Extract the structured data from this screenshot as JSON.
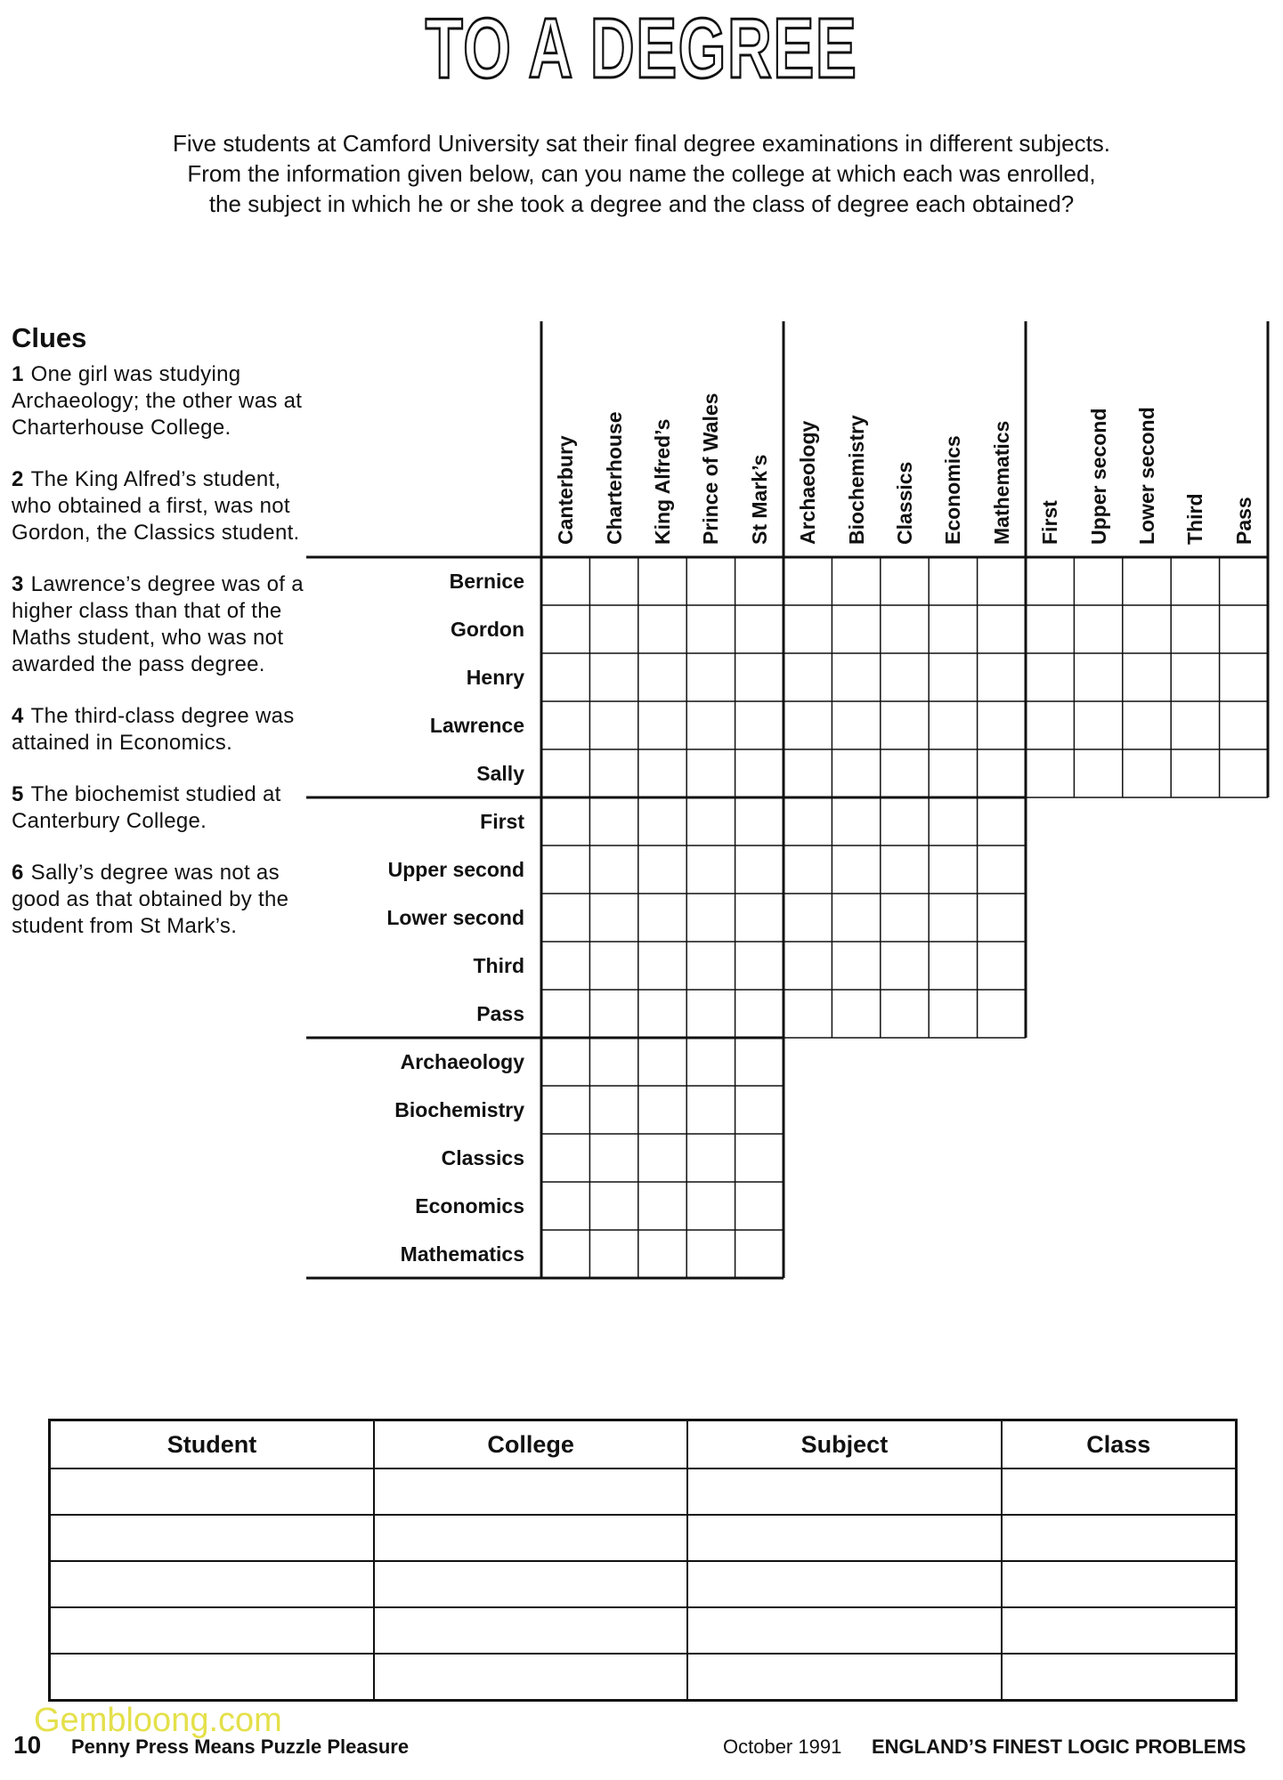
{
  "title": "TO A DEGREE",
  "intro": [
    "Five students at Camford University sat their final degree examinations in different subjects.",
    "From the information given below, can you name the college at which each was enrolled,",
    "the subject in which he or she took a degree and the class of degree each obtained?"
  ],
  "clues": {
    "heading": "Clues",
    "items": [
      {
        "number": "1",
        "text": "One girl was studying Archaeology; the other was at Charterhouse College."
      },
      {
        "number": "2",
        "text": "The King Alfred’s student, who obtained a first, was not Gordon, the Classics student."
      },
      {
        "number": "3",
        "text": "Lawrence’s degree was of a higher class than that of the Maths student, who was not awarded the pass degree."
      },
      {
        "number": "4",
        "text": "The third-class degree was attained in Economics."
      },
      {
        "number": "5",
        "text": "The biochemist studied at Canterbury College."
      },
      {
        "number": "6",
        "text": "Sally’s degree was not as good as that obtained by the student from St Mark’s."
      }
    ]
  },
  "grid": {
    "column_groups": [
      [
        "Canterbury",
        "Charterhouse",
        "King Alfred’s",
        "Prince of Wales",
        "St Mark’s"
      ],
      [
        "Archaeology",
        "Biochemistry",
        "Classics",
        "Economics",
        "Mathematics"
      ],
      [
        "First",
        "Upper second",
        "Lower second",
        "Third",
        "Pass"
      ]
    ],
    "row_groups": [
      [
        "Bernice",
        "Gordon",
        "Henry",
        "Lawrence",
        "Sally"
      ],
      [
        "First",
        "Upper second",
        "Lower second",
        "Third",
        "Pass"
      ],
      [
        "Archaeology",
        "Biochemistry",
        "Classics",
        "Economics",
        "Mathematics"
      ]
    ]
  },
  "answer_table": {
    "headers": [
      "Student",
      "College",
      "Subject",
      "Class"
    ]
  },
  "footer": {
    "page_number": "10",
    "left": "Penny Press Means Puzzle Pleasure",
    "date": "October 1991",
    "right": "ENGLAND’S FINEST LOGIC PROBLEMS"
  },
  "watermark": "Gembloong.com"
}
